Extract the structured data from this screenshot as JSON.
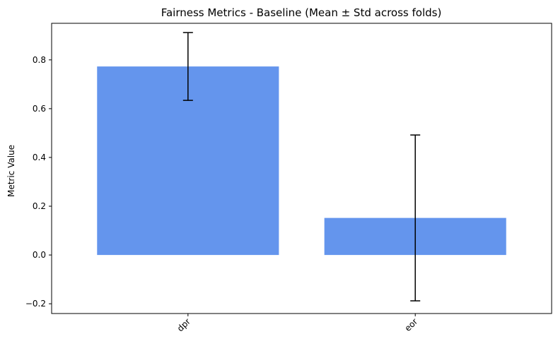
{
  "chart_data": {
    "type": "bar",
    "title": "Fairness Metrics - Baseline (Mean ± Std across folds)",
    "xlabel": "",
    "ylabel": "Metric Value",
    "categories": [
      "dpr",
      "eor"
    ],
    "values": [
      0.773,
      0.152
    ],
    "errors": [
      0.139,
      0.34
    ],
    "ylim": [
      -0.24,
      0.95
    ],
    "yticks": [
      -0.2,
      0.0,
      0.2,
      0.4,
      0.6,
      0.8
    ],
    "ytick_labels": [
      "−0.2",
      "0.0",
      "0.2",
      "0.4",
      "0.6",
      "0.8"
    ],
    "bar_color": "#6495ed",
    "error_color": "#000000",
    "grid": false,
    "xtick_rotation": 45
  }
}
